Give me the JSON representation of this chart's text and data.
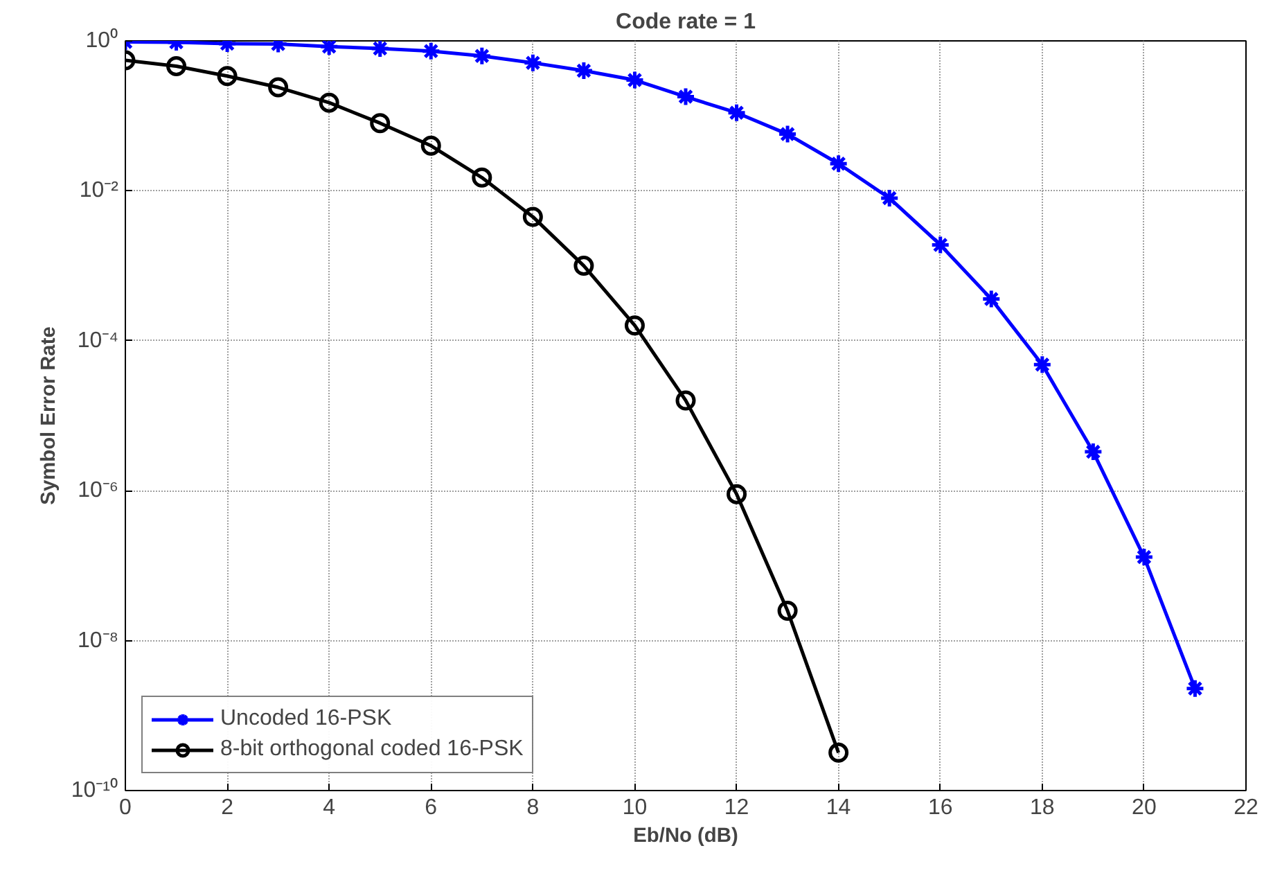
{
  "chart_data": {
    "type": "line",
    "title": "Code rate = 1",
    "xlabel": "Eb/No (dB)",
    "ylabel": "Symbol Error Rate",
    "log": "y",
    "grid": true,
    "legend": "bottom left",
    "line_style": "solid",
    "xlim": [
      0,
      22
    ],
    "xticks": [
      0,
      2,
      4,
      6,
      8,
      10,
      12,
      14,
      16,
      18,
      20,
      22
    ],
    "ylim": [
      1e-10,
      1
    ],
    "yticks": [
      {
        "value": 1,
        "label": "10⁰"
      },
      {
        "value": 0.01,
        "label": "10⁻²"
      },
      {
        "value": 0.0001,
        "label": "10⁻⁴"
      },
      {
        "value": 1e-06,
        "label": "10⁻⁶"
      },
      {
        "value": 1e-08,
        "label": "10⁻⁸"
      },
      {
        "value": 1e-10,
        "label": "10⁻¹⁰"
      }
    ],
    "series": [
      {
        "name": "Uncoded 16-PSK",
        "color": "#0000ff",
        "marker": "cross",
        "x": [
          0,
          1,
          2,
          3,
          4,
          5,
          6,
          7,
          8,
          9,
          10,
          11,
          12,
          13,
          14,
          15,
          16,
          17,
          18,
          19,
          20,
          21
        ],
        "values": [
          0.97,
          0.96,
          0.92,
          0.91,
          0.84,
          0.79,
          0.73,
          0.63,
          0.51,
          0.4,
          0.3,
          0.18,
          0.11,
          0.057,
          0.023,
          0.008,
          0.0019,
          0.00036,
          4.8e-05,
          3.3e-06,
          1.3e-07,
          2.3e-09
        ]
      },
      {
        "name": "8-bit orthogonal coded 16-PSK",
        "color": "#000000",
        "marker": "circle",
        "x": [
          0,
          1,
          2,
          3,
          4,
          5,
          6,
          7,
          8,
          9,
          10,
          11,
          12,
          13,
          14
        ],
        "values": [
          0.55,
          0.46,
          0.34,
          0.24,
          0.15,
          0.08,
          0.04,
          0.015,
          0.0045,
          0.001,
          0.00016,
          1.6e-05,
          9e-07,
          2.5e-08,
          3.2e-10
        ]
      }
    ]
  }
}
